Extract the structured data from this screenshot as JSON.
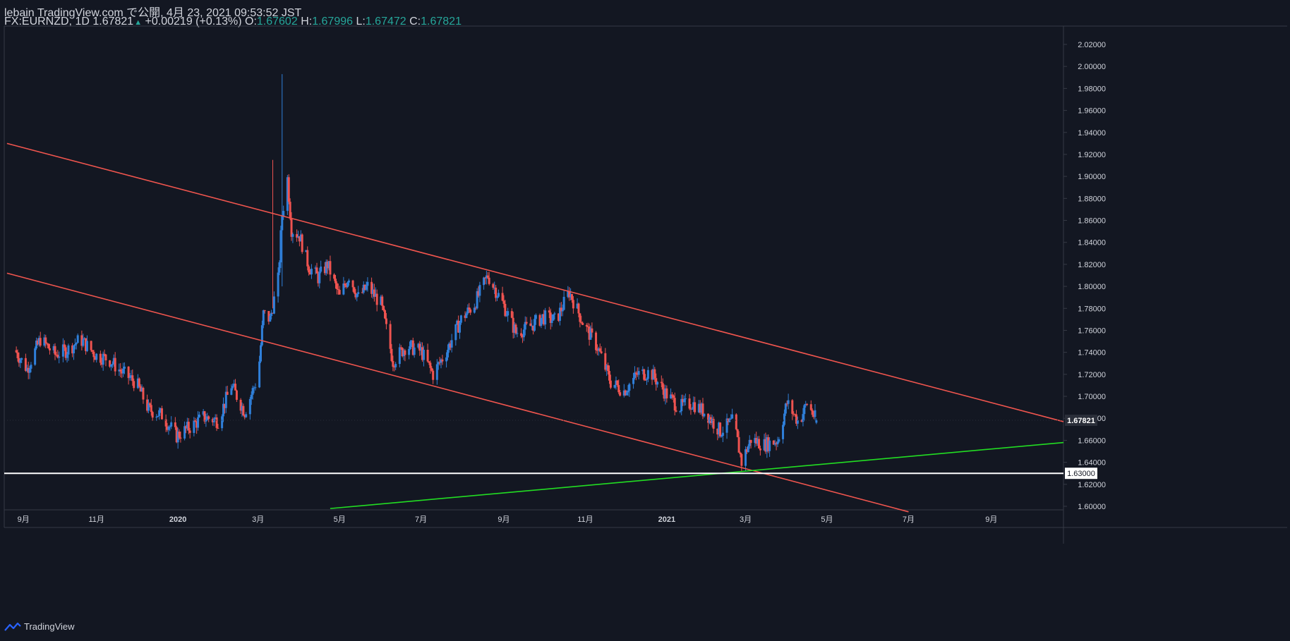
{
  "header": {
    "publish_line": "lebain TradingView.com で公開, 4月 23, 2021 09:53:52 JST",
    "symbol": "FX:EURNZD, 1D",
    "last": "1.67821",
    "change": "+0.00219 (+0.13%)",
    "o_label": "O:",
    "o_value": "1.67602",
    "h_label": "H:",
    "h_value": "1.67996",
    "l_label": "L:",
    "l_value": "1.67472",
    "c_label": "C:",
    "c_value": "1.67821"
  },
  "footer": {
    "brand": "TradingView"
  },
  "colors": {
    "background": "#131722",
    "up": "#2f7fd9",
    "down": "#ef5350",
    "channel": "#f0554e",
    "support": "#22dd22",
    "horizontal": "#ffffff",
    "axis_text": "#d1d4dc"
  },
  "chart_data": {
    "type": "candlestick",
    "symbol": "FX:EURNZD",
    "interval": "1D",
    "ylim": [
      1.595,
      2.03
    ],
    "yticks": [
      "2.02000",
      "2.00000",
      "1.98000",
      "1.96000",
      "1.94000",
      "1.92000",
      "1.90000",
      "1.88000",
      "1.86000",
      "1.84000",
      "1.82000",
      "1.80000",
      "1.78000",
      "1.76000",
      "1.74000",
      "1.72000",
      "1.70000",
      "1.68000",
      "1.66000",
      "1.64000",
      "1.62000",
      "1.60000"
    ],
    "xticks": [
      "9月",
      "11月",
      "2020",
      "3月",
      "5月",
      "7月",
      "9月",
      "11月",
      "2021",
      "3月",
      "5月",
      "7月",
      "9月"
    ],
    "price_label": "1.67821",
    "level_label": "1.63000",
    "close_path": [
      [
        "2019-09-01",
        1.742
      ],
      [
        "2019-09-10",
        1.725
      ],
      [
        "2019-09-20",
        1.752
      ],
      [
        "2019-10-01",
        1.738
      ],
      [
        "2019-10-10",
        1.742
      ],
      [
        "2019-10-20",
        1.752
      ],
      [
        "2019-11-01",
        1.737
      ],
      [
        "2019-11-10",
        1.734
      ],
      [
        "2019-11-20",
        1.722
      ],
      [
        "2019-12-01",
        1.712
      ],
      [
        "2019-12-10",
        1.688
      ],
      [
        "2019-12-20",
        1.683
      ],
      [
        "2019-12-31",
        1.664
      ],
      [
        "2020-01-10",
        1.672
      ],
      [
        "2020-01-20",
        1.681
      ],
      [
        "2020-01-31",
        1.678
      ],
      [
        "2020-02-10",
        1.71
      ],
      [
        "2020-02-20",
        1.686
      ],
      [
        "2020-03-01",
        1.718
      ],
      [
        "2020-03-05",
        1.775
      ],
      [
        "2020-03-10",
        1.77
      ],
      [
        "2020-03-16",
        1.806
      ],
      [
        "2020-03-19",
        1.865
      ],
      [
        "2020-03-23",
        1.898
      ],
      [
        "2020-03-26",
        1.852
      ],
      [
        "2020-04-01",
        1.846
      ],
      [
        "2020-04-08",
        1.818
      ],
      [
        "2020-04-15",
        1.808
      ],
      [
        "2020-04-22",
        1.82
      ],
      [
        "2020-05-01",
        1.79
      ],
      [
        "2020-05-08",
        1.81
      ],
      [
        "2020-05-15",
        1.79
      ],
      [
        "2020-05-22",
        1.8
      ],
      [
        "2020-06-01",
        1.784
      ],
      [
        "2020-06-10",
        1.732
      ],
      [
        "2020-06-20",
        1.746
      ],
      [
        "2020-07-01",
        1.741
      ],
      [
        "2020-07-10",
        1.72
      ],
      [
        "2020-07-20",
        1.741
      ],
      [
        "2020-07-31",
        1.77
      ],
      [
        "2020-08-10",
        1.784
      ],
      [
        "2020-08-20",
        1.81
      ],
      [
        "2020-08-31",
        1.785
      ],
      [
        "2020-09-10",
        1.758
      ],
      [
        "2020-09-20",
        1.763
      ],
      [
        "2020-09-30",
        1.772
      ],
      [
        "2020-10-10",
        1.769
      ],
      [
        "2020-10-20",
        1.795
      ],
      [
        "2020-10-31",
        1.765
      ],
      [
        "2020-11-10",
        1.745
      ],
      [
        "2020-11-20",
        1.713
      ],
      [
        "2020-11-30",
        1.705
      ],
      [
        "2020-12-10",
        1.72
      ],
      [
        "2020-12-20",
        1.722
      ],
      [
        "2020-12-31",
        1.703
      ],
      [
        "2021-01-10",
        1.69
      ],
      [
        "2021-01-20",
        1.694
      ],
      [
        "2021-01-31",
        1.684
      ],
      [
        "2021-02-10",
        1.668
      ],
      [
        "2021-02-20",
        1.678
      ],
      [
        "2021-02-26",
        1.64
      ],
      [
        "2021-03-05",
        1.661
      ],
      [
        "2021-03-15",
        1.656
      ],
      [
        "2021-03-25",
        1.66
      ],
      [
        "2021-04-01",
        1.694
      ],
      [
        "2021-04-10",
        1.676
      ],
      [
        "2021-04-16",
        1.694
      ],
      [
        "2021-04-23",
        1.67821
      ]
    ],
    "trendlines": [
      {
        "name": "channel-upper",
        "p1": [
          "2019-08-26",
          1.93
        ],
        "p2": [
          "2021-10-25",
          1.677
        ]
      },
      {
        "name": "channel-lower",
        "p1": [
          "2019-08-26",
          1.812
        ],
        "p2": [
          "2021-07-01",
          1.595
        ]
      },
      {
        "name": "support",
        "p1": [
          "2020-04-24",
          1.598
        ],
        "p2": [
          "2021-10-25",
          1.658
        ]
      }
    ],
    "horizontal_level": 1.63
  }
}
